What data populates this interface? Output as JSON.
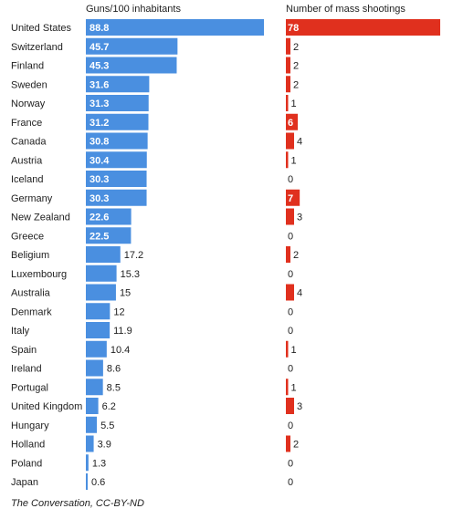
{
  "chart_data": {
    "type": "bar",
    "categories": [
      "United States",
      "Switzerland",
      "Finland",
      "Sweden",
      "Norway",
      "France",
      "Canada",
      "Austria",
      "Iceland",
      "Germany",
      "New Zealand",
      "Greece",
      "Beligium",
      "Luxembourg",
      "Australia",
      "Denmark",
      "Italy",
      "Spain",
      "Ireland",
      "Portugal",
      "United Kingdom",
      "Hungary",
      "Holland",
      "Poland",
      "Japan"
    ],
    "series": [
      {
        "name": "Guns/100 inhabitants",
        "color": "#4a8fe0",
        "values": [
          88.8,
          45.7,
          45.3,
          31.6,
          31.3,
          31.2,
          30.8,
          30.4,
          30.3,
          30.3,
          22.6,
          22.5,
          17.2,
          15.3,
          15,
          12,
          11.9,
          10.4,
          8.6,
          8.5,
          6.2,
          5.5,
          3.9,
          1.3,
          0.6
        ]
      },
      {
        "name": "Number of mass shootings",
        "color": "#e0301e",
        "values": [
          78,
          2,
          2,
          2,
          1,
          6,
          4,
          1,
          0,
          7,
          3,
          0,
          2,
          0,
          4,
          0,
          0,
          1,
          0,
          1,
          3,
          0,
          2,
          0,
          0
        ]
      }
    ],
    "title": "",
    "xlabel": "",
    "ylabel": ""
  },
  "source": "The Conversation, CC-BY-ND"
}
